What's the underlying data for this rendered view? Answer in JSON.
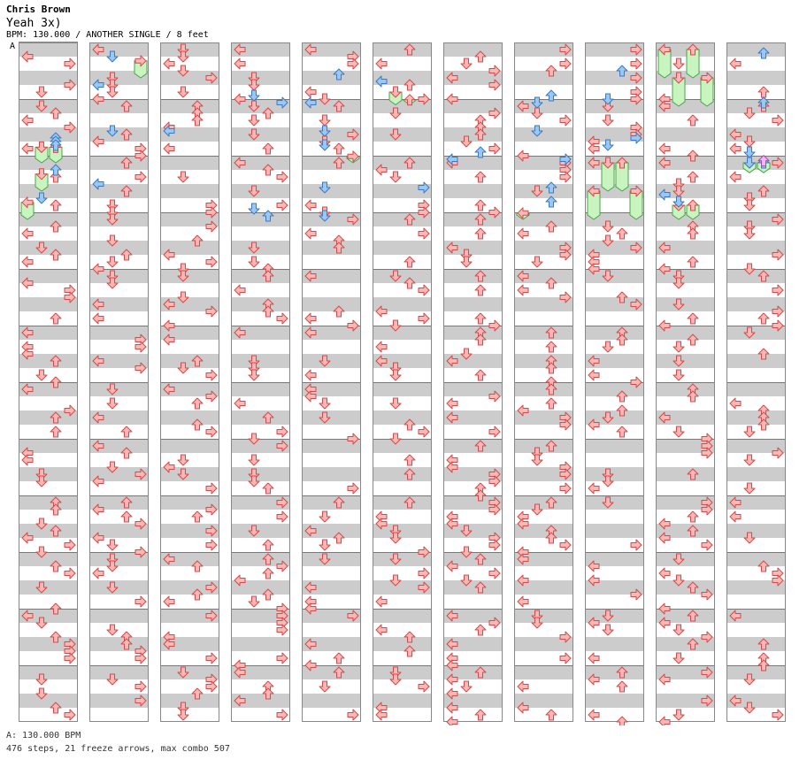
{
  "header": {
    "artist": "Chris Brown",
    "title": "Yeah 3x)",
    "info": "BPM: 130.000 / ANOTHER SINGLE / 8 feet",
    "section_marker": "A"
  },
  "footer": {
    "bpm_line": "A: 130.000 BPM",
    "stats": "476 steps, 21 freeze arrows, max combo 507"
  },
  "colors": {
    "band": "#cccccc",
    "border": "#888888",
    "arrow_red": "#f7b8b8",
    "arrow_red_stroke": "#d84848",
    "arrow_blue": "#9cc8f0",
    "arrow_blue_stroke": "#3a78c8",
    "arrow_pink": "#f0b8f0",
    "freeze": "#c8f4c0",
    "freeze_stroke": "#50a050"
  },
  "chart": {
    "columns": 11,
    "measures_per_column": 12,
    "beats_per_measure": 4,
    "lanes": [
      "left",
      "down",
      "up",
      "right"
    ],
    "freezes": [
      {
        "col": 0,
        "lane": 1,
        "start": 6.9,
        "end": 8.0
      },
      {
        "col": 0,
        "lane": 2,
        "start": 6.9,
        "end": 8.0
      },
      {
        "col": 0,
        "lane": 1,
        "start": 8.8,
        "end": 10.0
      },
      {
        "col": 0,
        "lane": 0,
        "start": 10.8,
        "end": 12.0
      },
      {
        "col": 1,
        "lane": 3,
        "start": 0.8,
        "end": 2.0
      },
      {
        "col": 4,
        "lane": 3,
        "start": 7.55,
        "end": 8.0
      },
      {
        "col": 5,
        "lane": 1,
        "start": 3.0,
        "end": 3.9
      },
      {
        "col": 5,
        "lane": 2,
        "start": 3.55,
        "end": 3.9
      },
      {
        "col": 7,
        "lane": 0,
        "start": 11.55,
        "end": 12.0
      },
      {
        "col": 8,
        "lane": 1,
        "start": 8.0,
        "end": 10.0
      },
      {
        "col": 8,
        "lane": 2,
        "start": 8.0,
        "end": 10.0
      },
      {
        "col": 8,
        "lane": 0,
        "start": 10.0,
        "end": 12.0
      },
      {
        "col": 8,
        "lane": 3,
        "start": 10.0,
        "end": 12.0
      },
      {
        "col": 9,
        "lane": 0,
        "start": 0.0,
        "end": 2.0
      },
      {
        "col": 9,
        "lane": 2,
        "start": 0.0,
        "end": 2.0
      },
      {
        "col": 9,
        "lane": 1,
        "start": 2.0,
        "end": 4.0
      },
      {
        "col": 9,
        "lane": 3,
        "start": 2.0,
        "end": 4.0
      },
      {
        "col": 9,
        "lane": 1,
        "start": 11.0,
        "end": 12.0
      },
      {
        "col": 9,
        "lane": 2,
        "start": 11.0,
        "end": 12.0
      },
      {
        "col": 10,
        "lane": 1,
        "start": 8.0,
        "end": 8.7
      },
      {
        "col": 10,
        "lane": 2,
        "start": 8.0,
        "end": 8.7
      }
    ],
    "blue_notes": [
      {
        "col": 0,
        "lane": 2,
        "beat": 6.25
      },
      {
        "col": 0,
        "lane": 2,
        "beat": 6.5
      },
      {
        "col": 0,
        "lane": 2,
        "beat": 6.75
      },
      {
        "col": 0,
        "lane": 2,
        "beat": 8.5
      },
      {
        "col": 0,
        "lane": 1,
        "beat": 10.5
      },
      {
        "col": 1,
        "lane": 1,
        "beat": 0.5
      },
      {
        "col": 1,
        "lane": 0,
        "beat": 2.5
      },
      {
        "col": 1,
        "lane": 1,
        "beat": 5.75
      },
      {
        "col": 1,
        "lane": 0,
        "beat": 9.5
      },
      {
        "col": 2,
        "lane": 0,
        "beat": 5.75
      },
      {
        "col": 3,
        "lane": 1,
        "beat": 3.25
      },
      {
        "col": 3,
        "lane": 3,
        "beat": 3.75
      },
      {
        "col": 3,
        "lane": 1,
        "beat": 11.25
      },
      {
        "col": 3,
        "lane": 2,
        "beat": 11.75
      },
      {
        "col": 4,
        "lane": 2,
        "beat": 1.75
      },
      {
        "col": 4,
        "lane": 0,
        "beat": 3.75
      },
      {
        "col": 4,
        "lane": 1,
        "beat": 5.75
      },
      {
        "col": 4,
        "lane": 1,
        "beat": 6.75
      },
      {
        "col": 4,
        "lane": 1,
        "beat": 9.75
      },
      {
        "col": 4,
        "lane": 1,
        "beat": 11.75
      },
      {
        "col": 5,
        "lane": 0,
        "beat": 2.25
      },
      {
        "col": 5,
        "lane": 3,
        "beat": 9.75
      },
      {
        "col": 6,
        "lane": 2,
        "beat": 7.25
      },
      {
        "col": 6,
        "lane": 0,
        "beat": 7.75
      },
      {
        "col": 7,
        "lane": 2,
        "beat": 3.25
      },
      {
        "col": 7,
        "lane": 1,
        "beat": 3.75
      },
      {
        "col": 7,
        "lane": 1,
        "beat": 5.75
      },
      {
        "col": 7,
        "lane": 3,
        "beat": 7.75
      },
      {
        "col": 7,
        "lane": 2,
        "beat": 9.75
      },
      {
        "col": 7,
        "lane": 2,
        "beat": 10.75
      },
      {
        "col": 8,
        "lane": 2,
        "beat": 1.5
      },
      {
        "col": 8,
        "lane": 1,
        "beat": 3.5
      },
      {
        "col": 8,
        "lane": 3,
        "beat": 6.25
      },
      {
        "col": 8,
        "lane": 1,
        "beat": 6.75
      },
      {
        "col": 9,
        "lane": 0,
        "beat": 10.25
      },
      {
        "col": 9,
        "lane": 1,
        "beat": 10.75
      },
      {
        "col": 10,
        "lane": 2,
        "beat": 0.25
      },
      {
        "col": 10,
        "lane": 2,
        "beat": 3.75
      },
      {
        "col": 10,
        "lane": 1,
        "beat": 7.25
      },
      {
        "col": 10,
        "lane": 1,
        "beat": 8.0
      },
      {
        "col": 10,
        "lane": 2,
        "beat": 8.0
      }
    ],
    "pink_notes": [
      {
        "col": 10,
        "lane": 2,
        "beat": 7.85
      }
    ]
  }
}
